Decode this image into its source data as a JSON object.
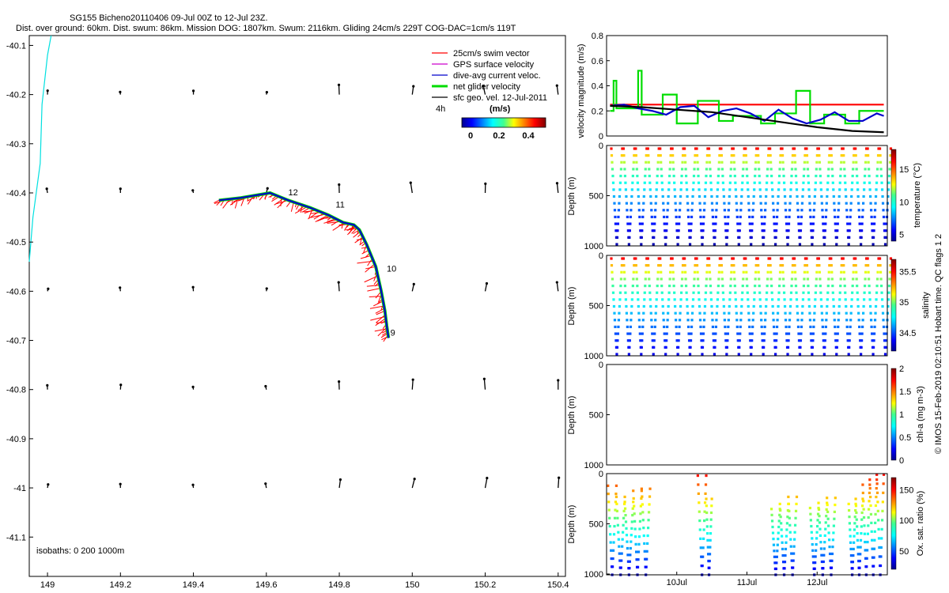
{
  "header": {
    "title": "SG155 Bicheno20110406 09-Jul 00Z to 12-Jul 23Z.",
    "subtitle": "Dist. over ground: 60km. Dist. swum: 86km. Mission DOG: 1807km. Swum: 2116km. Gliding 24cm/s 229T COG-DAC=1cm/s 119T"
  },
  "credit": "© IMOS 15-Feb-2019 02:10:51 Hobart time. QC flags 1  2",
  "colors": {
    "swim": "#ff0000",
    "gps": "#cc00cc",
    "dac": "#0000cc",
    "net": "#00dd00",
    "geo": "#000000",
    "isobath": "#00e0e0"
  },
  "chart_data": [
    {
      "id": "map",
      "type": "scatter",
      "title": "",
      "xlabel": "",
      "ylabel": "",
      "xlim": [
        148.95,
        150.42
      ],
      "ylim": [
        -41.18,
        -40.08
      ],
      "x_ticks": [
        149,
        149.2,
        149.4,
        149.6,
        149.8,
        150,
        150.2,
        150.4
      ],
      "x_tick_labels": [
        "149",
        "149.2",
        "149.4",
        "149.6",
        "149.8",
        "150",
        "150.2",
        "150.4"
      ],
      "y_ticks": [
        -40.1,
        -40.2,
        -40.3,
        -40.4,
        -40.5,
        -40.6,
        -40.7,
        -40.8,
        -40.9,
        -41,
        -41.1
      ],
      "y_tick_labels": [
        "-40.1",
        "-40.2",
        "-40.3",
        "-40.4",
        "-40.5",
        "-40.6",
        "-40.7",
        "-40.8",
        "-40.9",
        "-41",
        "-41.1"
      ],
      "legend": [
        {
          "label": "25cm/s swim vector",
          "color": "#ff0000"
        },
        {
          "label": "GPS surface velocity",
          "color": "#cc00cc"
        },
        {
          "label": "dive-avg current veloc.",
          "color": "#0000cc"
        },
        {
          "label": "net glider velocity",
          "color": "#00dd00"
        },
        {
          "label": "sfc geo. vel. 12-Jul-2011",
          "color": "#000000"
        }
      ],
      "time_label": "4h",
      "colorbar": {
        "label": "(m/s)",
        "ticks": [
          "0",
          "0.2",
          "0.4"
        ],
        "range": [
          0,
          0.5
        ]
      },
      "isobath_label": "isobaths: 0   200   1000m",
      "track": [
        {
          "x": 149.47,
          "y": -40.415
        },
        {
          "x": 149.53,
          "y": -40.41
        },
        {
          "x": 149.57,
          "y": -40.405
        },
        {
          "x": 149.61,
          "y": -40.4
        },
        {
          "x": 149.66,
          "y": -40.415
        },
        {
          "x": 149.72,
          "y": -40.43
        },
        {
          "x": 149.77,
          "y": -40.445
        },
        {
          "x": 149.81,
          "y": -40.46
        },
        {
          "x": 149.84,
          "y": -40.465
        },
        {
          "x": 149.855,
          "y": -40.475
        },
        {
          "x": 149.875,
          "y": -40.505
        },
        {
          "x": 149.9,
          "y": -40.55
        },
        {
          "x": 149.915,
          "y": -40.6
        },
        {
          "x": 149.925,
          "y": -40.64
        },
        {
          "x": 149.93,
          "y": -40.67
        },
        {
          "x": 149.935,
          "y": -40.695
        }
      ],
      "day_labels": [
        {
          "text": "9",
          "x": 149.94,
          "y": -40.69
        },
        {
          "text": "10",
          "x": 149.93,
          "y": -40.56
        },
        {
          "text": "11",
          "x": 149.79,
          "y": -40.43
        },
        {
          "text": "12",
          "x": 149.66,
          "y": -40.405
        }
      ],
      "isobath": [
        {
          "x": 148.95,
          "y": -40.54
        },
        {
          "x": 148.96,
          "y": -40.45
        },
        {
          "x": 148.98,
          "y": -40.34
        },
        {
          "x": 148.985,
          "y": -40.22
        },
        {
          "x": 149.0,
          "y": -40.12
        },
        {
          "x": 149.01,
          "y": -40.08
        }
      ],
      "geo_grid_x": [
        149,
        149.2,
        149.4,
        149.6,
        149.8,
        150,
        150.2,
        150.4
      ],
      "geo_grid_y": [
        -40.2,
        -40.4,
        -40.6,
        -40.8,
        -41
      ]
    },
    {
      "id": "velocity",
      "type": "line",
      "title": "",
      "xlabel": "",
      "ylabel": "velocity magnitude (m/s)",
      "xlim": [
        0,
        4
      ],
      "ylim": [
        0,
        0.8
      ],
      "y_ticks": [
        0,
        0.2,
        0.4,
        0.6,
        0.8
      ],
      "y_tick_labels": [
        "0",
        "0.2",
        "0.4",
        "0.6",
        "0.8"
      ],
      "series": [
        {
          "name": "swim speed",
          "color": "#ff0000",
          "x": [
            0.05,
            3.95
          ],
          "values": [
            0.25,
            0.25
          ]
        },
        {
          "name": "net glider velocity",
          "color": "#00dd00",
          "x": [
            0.05,
            0.1,
            0.1,
            0.14,
            0.14,
            0.45,
            0.45,
            0.5,
            0.5,
            0.8,
            0.8,
            1.0,
            1.0,
            1.3,
            1.3,
            1.6,
            1.6,
            1.8,
            1.8,
            2.2,
            2.2,
            2.4,
            2.4,
            2.7,
            2.7,
            2.9,
            2.9,
            3.1,
            3.1,
            3.4,
            3.4,
            3.6,
            3.6,
            3.95
          ],
          "values": [
            0.2,
            0.2,
            0.44,
            0.44,
            0.22,
            0.22,
            0.52,
            0.52,
            0.17,
            0.17,
            0.33,
            0.33,
            0.1,
            0.1,
            0.28,
            0.28,
            0.12,
            0.12,
            0.16,
            0.16,
            0.1,
            0.1,
            0.18,
            0.18,
            0.36,
            0.36,
            0.1,
            0.1,
            0.17,
            0.17,
            0.1,
            0.1,
            0.2,
            0.2
          ]
        },
        {
          "name": "dive-avg current",
          "color": "#0000cc",
          "x": [
            0.05,
            0.25,
            0.45,
            0.65,
            0.85,
            1.05,
            1.25,
            1.45,
            1.65,
            1.85,
            2.05,
            2.25,
            2.45,
            2.65,
            2.85,
            3.05,
            3.25,
            3.45,
            3.65,
            3.85,
            3.95
          ],
          "values": [
            0.24,
            0.25,
            0.22,
            0.2,
            0.17,
            0.23,
            0.24,
            0.15,
            0.2,
            0.22,
            0.18,
            0.12,
            0.21,
            0.14,
            0.1,
            0.13,
            0.19,
            0.12,
            0.12,
            0.18,
            0.16
          ]
        },
        {
          "name": "sfc geo. vel.",
          "color": "#000000",
          "x": [
            0.05,
            0.5,
            1.0,
            1.5,
            2.0,
            2.5,
            3.0,
            3.5,
            3.95
          ],
          "values": [
            0.24,
            0.23,
            0.21,
            0.19,
            0.15,
            0.11,
            0.07,
            0.04,
            0.03
          ]
        }
      ]
    },
    {
      "id": "temperature",
      "type": "scatter",
      "ylabel": "Depth (m)",
      "ylim": [
        1000,
        0
      ],
      "y_ticks": [
        0,
        500,
        1000
      ],
      "y_tick_labels": [
        "0",
        "500",
        "1000"
      ],
      "dives": 23,
      "max_depth": 1000,
      "colorbar": {
        "label": "temperature (°C)",
        "ticks": [
          "5",
          "10",
          "15"
        ],
        "range": [
          4,
          18
        ]
      },
      "surface_value": 16,
      "deep_value": 4.5
    },
    {
      "id": "salinity",
      "type": "scatter",
      "ylabel": "Depth (m)",
      "ylim": [
        1000,
        0
      ],
      "y_ticks": [
        0,
        500,
        1000
      ],
      "y_tick_labels": [
        "0",
        "500",
        "1000"
      ],
      "dives": 23,
      "max_depth": 1000,
      "colorbar": {
        "label": "salinity",
        "ticks": [
          "34.5",
          "35",
          "35.5"
        ],
        "range": [
          34.2,
          35.7
        ]
      },
      "surface_value": 35.5,
      "deep_value": 34.35
    },
    {
      "id": "chla",
      "type": "scatter",
      "ylabel": "Depth (m)",
      "ylim": [
        1000,
        0
      ],
      "y_ticks": [
        0,
        500,
        1000
      ],
      "y_tick_labels": [
        "0",
        "500",
        "1000"
      ],
      "colorbar": {
        "label": "chl-a (mg m-3)",
        "ticks": [
          "0",
          "0.5",
          "1",
          "1.5",
          "2"
        ],
        "range": [
          0,
          2
        ]
      }
    },
    {
      "id": "oxygen",
      "type": "scatter",
      "ylabel": "Depth (m)",
      "ylim": [
        1000,
        0
      ],
      "y_ticks": [
        0,
        500,
        1000
      ],
      "y_tick_labels": [
        "0",
        "500",
        "1000"
      ],
      "colorbar": {
        "label": "Ox. sat. ratio (%)",
        "ticks": [
          "50",
          "100",
          "150"
        ],
        "range": [
          20,
          170
        ]
      },
      "x_tick_labels": [
        "10Jul",
        "11Jul",
        "12Jul"
      ],
      "x_ticks": [
        1,
        2,
        3
      ],
      "dive_segments": [
        {
          "start": 0.02,
          "end": 0.14,
          "top": 120
        },
        {
          "start": 0.14,
          "end": 0.26,
          "top": 230
        },
        {
          "start": 0.26,
          "end": 0.38,
          "top": 280
        },
        {
          "start": 0.38,
          "end": 0.5,
          "top": 170
        },
        {
          "start": 0.5,
          "end": 0.62,
          "top": 150
        },
        {
          "start": 1.3,
          "end": 1.42,
          "top": 20
        },
        {
          "start": 1.42,
          "end": 1.5,
          "top": 250
        },
        {
          "start": 2.35,
          "end": 2.47,
          "top": 350
        },
        {
          "start": 2.47,
          "end": 2.59,
          "top": 300
        },
        {
          "start": 2.59,
          "end": 2.71,
          "top": 230
        },
        {
          "start": 2.9,
          "end": 3.02,
          "top": 340
        },
        {
          "start": 3.02,
          "end": 3.14,
          "top": 290
        },
        {
          "start": 3.14,
          "end": 3.26,
          "top": 240
        },
        {
          "start": 3.45,
          "end": 3.55,
          "top": 300
        },
        {
          "start": 3.55,
          "end": 3.65,
          "top": 250
        },
        {
          "start": 3.65,
          "end": 3.75,
          "top": 110
        },
        {
          "start": 3.75,
          "end": 3.85,
          "top": 60
        },
        {
          "start": 3.85,
          "end": 3.95,
          "top": 10
        }
      ]
    }
  ]
}
